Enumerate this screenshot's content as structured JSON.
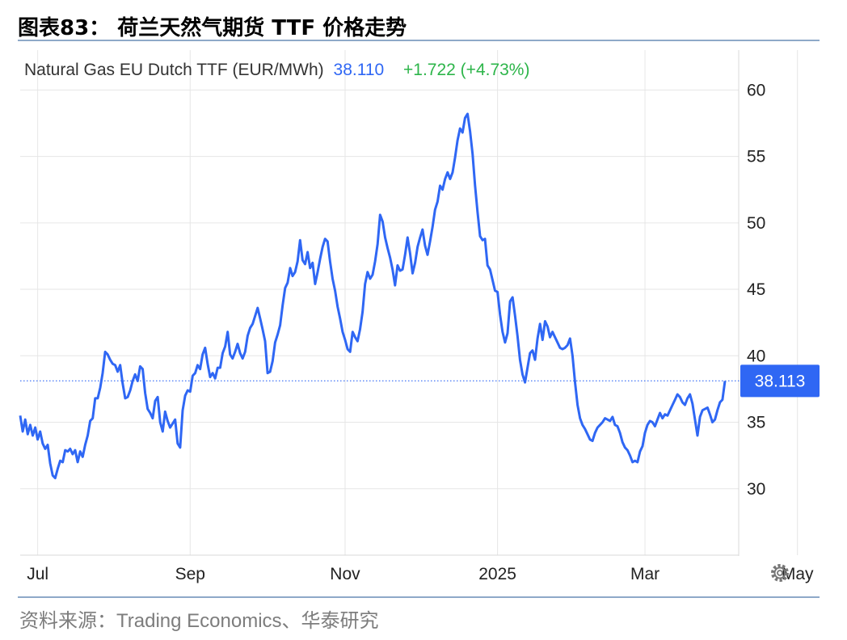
{
  "figure": {
    "title": "图表83： 荷兰天然气期货 TTF 价格走势",
    "source": "资料来源：Trading Economics、华泰研究"
  },
  "chart_data": {
    "type": "line",
    "header": {
      "name": "Natural Gas EU Dutch TTF (EUR/MWh)",
      "price": "38.110",
      "change": "+1.722 (+4.73%)"
    },
    "current_marker": {
      "value": 38.113,
      "label": "38.113"
    },
    "y_axis": {
      "ticks": [
        30,
        35,
        40,
        45,
        50,
        55,
        60
      ],
      "ylim": [
        25.0,
        63.0
      ],
      "position": "right"
    },
    "x_axis": {
      "ticks": [
        "Jul",
        "Sep",
        "Nov",
        "2025",
        "Mar",
        "May"
      ],
      "tick_index": [
        7,
        68,
        130,
        191,
        250,
        311
      ]
    },
    "grid": true,
    "settings_icon": "gear-icon",
    "colors": {
      "line": "#2f67f4",
      "marker_bg": "#2f67f4",
      "change_positive": "#2db54a",
      "grid": "#e6e6e6"
    },
    "series": [
      {
        "values": [
          35.5,
          34.3,
          35.2,
          34.1,
          34.8,
          34.0,
          34.6,
          33.7,
          34.3,
          33.4,
          33.0,
          33.3,
          31.9,
          31.0,
          30.8,
          31.5,
          32.1,
          32.0,
          32.9,
          32.8,
          33.0,
          32.6,
          32.9,
          32.0,
          32.8,
          32.4,
          33.3,
          34.0,
          35.1,
          35.3,
          36.8,
          36.8,
          37.6,
          38.7,
          40.3,
          40.1,
          39.7,
          39.4,
          39.3,
          38.8,
          39.3,
          37.9,
          36.8,
          36.9,
          37.4,
          38.1,
          38.6,
          38.1,
          39.2,
          39.0,
          37.2,
          36.0,
          35.7,
          35.3,
          36.6,
          36.9,
          35.0,
          34.3,
          35.8,
          35.1,
          34.6,
          34.9,
          35.2,
          33.4,
          33.1,
          35.9,
          37.0,
          37.4,
          37.3,
          38.5,
          38.7,
          39.3,
          39.0,
          40.1,
          40.6,
          39.4,
          38.4,
          38.7,
          38.3,
          39.1,
          39.1,
          40.2,
          40.7,
          41.8,
          40.1,
          39.8,
          40.3,
          40.9,
          40.2,
          39.8,
          40.3,
          41.5,
          42.1,
          42.4,
          43.0,
          43.6,
          42.8,
          42.0,
          41.1,
          38.7,
          38.8,
          39.6,
          41.0,
          41.6,
          42.3,
          43.8,
          45.1,
          45.5,
          46.6,
          46.0,
          46.3,
          47.1,
          48.7,
          47.2,
          46.9,
          47.8,
          46.6,
          47.0,
          45.4,
          46.3,
          47.3,
          48.2,
          48.8,
          48.6,
          47.1,
          45.8,
          44.9,
          43.7,
          42.8,
          41.8,
          41.2,
          40.5,
          40.3,
          41.8,
          41.4,
          41.1,
          42.0,
          43.3,
          45.4,
          46.3,
          45.8,
          46.1,
          47.1,
          48.4,
          50.6,
          50.1,
          48.9,
          48.1,
          47.4,
          46.5,
          45.3,
          46.8,
          46.4,
          46.5,
          47.6,
          48.9,
          47.7,
          46.2,
          47.0,
          48.2,
          48.9,
          49.5,
          48.3,
          47.6,
          48.6,
          49.7,
          51.0,
          51.6,
          52.8,
          52.5,
          53.3,
          53.8,
          53.3,
          53.8,
          54.9,
          56.2,
          57.1,
          56.8,
          57.9,
          58.2,
          56.9,
          55.2,
          52.8,
          50.8,
          49.0,
          48.7,
          48.8,
          46.8,
          46.5,
          45.7,
          44.9,
          44.8,
          43.1,
          41.8,
          41.0,
          41.7,
          44.1,
          44.4,
          43.0,
          41.5,
          39.7,
          38.6,
          38.0,
          39.1,
          40.2,
          40.4,
          39.7,
          41.3,
          42.4,
          41.2,
          42.6,
          42.2,
          41.4,
          41.8,
          41.4,
          41.0,
          40.6,
          40.5,
          40.6,
          40.8,
          41.3,
          40.0,
          38.0,
          36.3,
          35.3,
          34.8,
          34.5,
          34.1,
          33.7,
          33.6,
          34.2,
          34.6,
          34.8,
          35.0,
          35.3,
          35.2,
          35.1,
          35.4,
          34.8,
          34.7,
          34.2,
          33.5,
          33.1,
          32.9,
          32.5,
          32.0,
          32.1,
          32.0,
          32.8,
          33.2,
          34.2,
          34.8,
          35.1,
          35.0,
          34.7,
          35.2,
          35.7,
          35.3,
          35.6,
          35.5,
          35.9,
          36.3,
          36.7,
          37.1,
          36.9,
          36.5,
          36.3,
          36.8,
          37.1,
          36.4,
          35.2,
          34.0,
          35.4,
          35.9,
          36.0,
          36.1,
          35.6,
          35.0,
          35.2,
          35.9,
          36.5,
          36.7,
          38.1
        ]
      }
    ]
  }
}
